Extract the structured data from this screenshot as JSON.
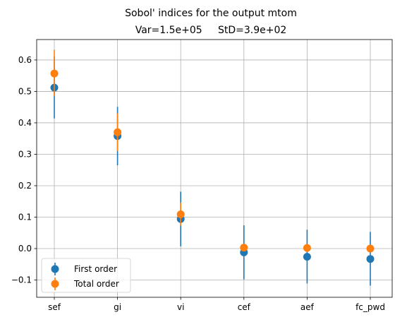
{
  "chart_data": {
    "type": "scatter",
    "title": "Sobol' indices for the output mtom",
    "subtitle": "Var=1.5e+05     StD=3.9e+02",
    "xlabel": "",
    "ylabel": "",
    "categories": [
      "sef",
      "gi",
      "vi",
      "cef",
      "aef",
      "fc_pwd"
    ],
    "ylim": [
      -0.155,
      0.665
    ],
    "yticks": [
      -0.1,
      0.0,
      0.1,
      0.2,
      0.3,
      0.4,
      0.5,
      0.6
    ],
    "ytick_labels": [
      "−0.1",
      "0.0",
      "0.1",
      "0.2",
      "0.3",
      "0.4",
      "0.5",
      "0.6"
    ],
    "grid": true,
    "legend_position": "lower-left",
    "series": [
      {
        "name": "First order",
        "color": "#1f77b4",
        "values": [
          0.512,
          0.358,
          0.094,
          -0.012,
          -0.026,
          -0.033
        ],
        "err_low": [
          0.414,
          0.265,
          0.007,
          -0.098,
          -0.111,
          -0.118
        ],
        "err_high": [
          0.611,
          0.451,
          0.181,
          0.074,
          0.06,
          0.053
        ]
      },
      {
        "name": "Total order",
        "color": "#ff7f0e",
        "values": [
          0.557,
          0.37,
          0.109,
          0.003,
          0.002,
          0.0
        ],
        "err_low": [
          0.485,
          0.31,
          0.073,
          -0.007,
          -0.004,
          -0.004
        ],
        "err_high": [
          0.632,
          0.43,
          0.146,
          0.013,
          0.008,
          0.004
        ]
      }
    ]
  }
}
